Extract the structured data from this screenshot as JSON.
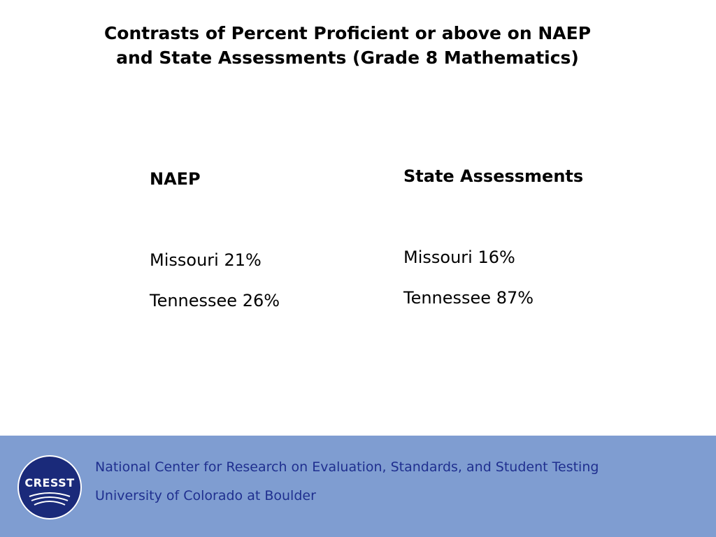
{
  "slide": {
    "title_line_1": "Contrasts of Percent Proficient or above on NAEP",
    "title_line_2": "and State Assessments (Grade 8 Mathematics)"
  },
  "columns": {
    "naep": {
      "heading": "NAEP",
      "rows": [
        "Missouri 21%",
        "Tennessee 26%"
      ]
    },
    "state": {
      "heading": "State Assessments",
      "rows": [
        "Missouri 16%",
        "Tennessee 87%"
      ]
    }
  },
  "footer": {
    "logo_text": "CRESST",
    "line_1": "National Center for Research on Evaluation, Standards, and Student Testing",
    "line_2": "University of Colorado at Boulder"
  },
  "colors": {
    "footer_background": "#7f9dd1",
    "footer_text": "#1f2f8f",
    "logo_fill": "#1a2a7a"
  }
}
